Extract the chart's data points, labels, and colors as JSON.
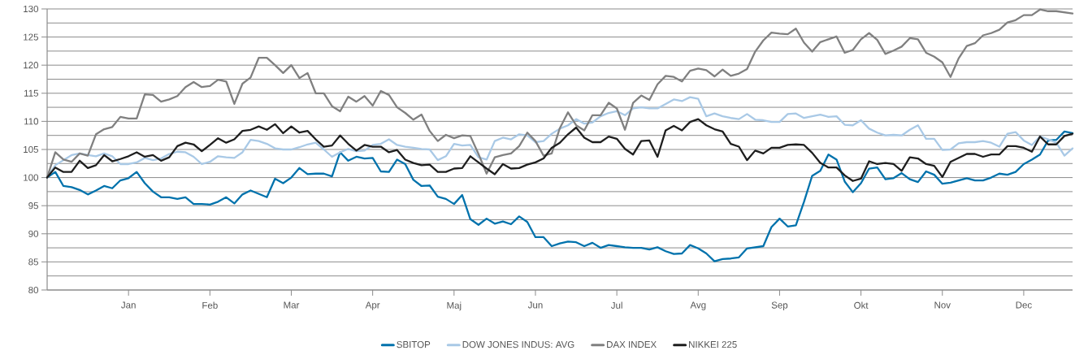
{
  "chart_data": {
    "type": "line",
    "categories": [
      null,
      null,
      null,
      null,
      null,
      null,
      null,
      null,
      null,
      null,
      "Jan",
      null,
      null,
      null,
      null,
      null,
      null,
      null,
      null,
      null,
      "Feb",
      null,
      null,
      null,
      null,
      null,
      null,
      null,
      null,
      null,
      "Mar",
      null,
      null,
      null,
      null,
      null,
      null,
      null,
      null,
      null,
      "Apr",
      null,
      null,
      null,
      null,
      null,
      null,
      null,
      null,
      null,
      "Maj",
      null,
      null,
      null,
      null,
      null,
      null,
      null,
      null,
      null,
      "Jun",
      null,
      null,
      null,
      null,
      null,
      null,
      null,
      null,
      null,
      "Jul",
      null,
      null,
      null,
      null,
      null,
      null,
      null,
      null,
      null,
      "Avg",
      null,
      null,
      null,
      null,
      null,
      null,
      null,
      null,
      null,
      "Sep",
      null,
      null,
      null,
      null,
      null,
      null,
      null,
      null,
      null,
      "Okt",
      null,
      null,
      null,
      null,
      null,
      null,
      null,
      null,
      null,
      "Nov",
      null,
      null,
      null,
      null,
      null,
      null,
      null,
      null,
      null,
      "Dec",
      null,
      null,
      null,
      null,
      null,
      null
    ],
    "ylim": [
      80,
      130
    ],
    "yticks": [
      80,
      {
        "value": 82.5,
        "label": null
      },
      85,
      {
        "value": 87.5,
        "label": null
      },
      90,
      {
        "value": 92.5,
        "label": null
      },
      95,
      {
        "value": 97.5,
        "label": null
      },
      100,
      {
        "value": 102.5,
        "label": null
      },
      105,
      {
        "value": 107.5,
        "label": null
      },
      110,
      {
        "value": 112.5,
        "label": null
      },
      115,
      {
        "value": 117.5,
        "label": null
      },
      120,
      {
        "value": 122.5,
        "label": null
      },
      125,
      {
        "value": 127.5,
        "label": null
      },
      130
    ],
    "grid": "y",
    "legend": "bottom",
    "series": [
      {
        "name": "SBITOP",
        "color": "#0072ac",
        "values": [
          100,
          101,
          98.5,
          98.3,
          97.8,
          97,
          97.7,
          98.5,
          98.1,
          99.5,
          99.9,
          101.0,
          99,
          97.5,
          96.5,
          96.5,
          96.2,
          96.5,
          95.3,
          95.3,
          95.2,
          95.7,
          96.5,
          95.4,
          97,
          97.7,
          97.1,
          96.5,
          99.8,
          99,
          100,
          101.7,
          100.6,
          100.7,
          100.7,
          100.2,
          104.5,
          103,
          103.7,
          103.4,
          103.5,
          101.1,
          101.0,
          103.2,
          102.4,
          99.6,
          98.5,
          98.6,
          96.6,
          96.2,
          95.3,
          96.9,
          92.6,
          91.6,
          92.7,
          91.8,
          92.2,
          91.7,
          93.1,
          92.1,
          89.4,
          89.4,
          87.8,
          88.3,
          88.6,
          88.5,
          87.8,
          88.4,
          87.5,
          88.0,
          87.8,
          87.6,
          87.5,
          87.5,
          87.2,
          87.6,
          86.9,
          86.4,
          86.5,
          88.0,
          87.4,
          86.5,
          85.1,
          85.5,
          85.6,
          85.8,
          87.4,
          87.6,
          87.8,
          91.2,
          92.7,
          91.3,
          91.5,
          95.7,
          100.3,
          101.2,
          104.1,
          103.2,
          99.3,
          97.4,
          99.0,
          101.6,
          101.8,
          99.7,
          99.9,
          100.8,
          99.7,
          99.2,
          101.1,
          100.5,
          98.9,
          99.1,
          99.5,
          99.9,
          99.5,
          99.5,
          100,
          100.7,
          100.5,
          101,
          102.4,
          103.2,
          104.1,
          106.6,
          106.7,
          108.2,
          107.9
        ]
      },
      {
        "name": "DOW JONES INDUS: AVG",
        "color": "#a9c9e6",
        "values": [
          100,
          102.2,
          103.1,
          104,
          104.3,
          104,
          103.8,
          104.3,
          103.8,
          102.4,
          102.4,
          102.7,
          103.5,
          103.1,
          103.4,
          104.2,
          104.6,
          104.5,
          103.7,
          102.4,
          102.8,
          103.8,
          103.6,
          103.5,
          104.5,
          106.7,
          106.5,
          106,
          105.2,
          105,
          105,
          105.4,
          105.9,
          106.2,
          105,
          103.7,
          104.5,
          105.1,
          104.7,
          104.8,
          105.8,
          106,
          106.8,
          105.8,
          105.5,
          105.3,
          105.1,
          105,
          103.1,
          103.8,
          106,
          105.7,
          105.8,
          103.6,
          103.2,
          106.5,
          107.1,
          106.8,
          107.7,
          107.5,
          106.3,
          106.5,
          107.8,
          108.7,
          109.3,
          110.4,
          109.6,
          109.8,
          110.9,
          111.5,
          111.8,
          111.1,
          112.3,
          112.5,
          112.3,
          112.3,
          113.1,
          113.9,
          113.6,
          114.3,
          114,
          110.9,
          111.4,
          110.9,
          110.6,
          110.4,
          111.3,
          110.3,
          110.2,
          109.9,
          109.9,
          111.3,
          111.4,
          110.6,
          110.9,
          111.2,
          110.8,
          110.9,
          109.4,
          109.3,
          110.2,
          108.7,
          108,
          107.5,
          107.6,
          107.5,
          108.5,
          109.3,
          106.9,
          106.9,
          104.9,
          105,
          106.1,
          106.3,
          106.3,
          106.5,
          106.2,
          105.5,
          107.8,
          108.1,
          106.6,
          105.8,
          107.3,
          106.8,
          106.2,
          103.9,
          105.2
        ]
      },
      {
        "name": "DAX INDEX",
        "color": "#808080",
        "values": [
          100,
          104.5,
          103.2,
          102.8,
          104.3,
          103.9,
          107.7,
          108.6,
          109,
          110.8,
          110.5,
          110.5,
          114.8,
          114.7,
          113.5,
          113.9,
          114.5,
          116.1,
          117,
          116.1,
          116.3,
          117.4,
          117.1,
          113.1,
          116.7,
          117.8,
          121.3,
          121.3,
          120,
          118.6,
          120,
          117.7,
          118.6,
          115,
          115,
          112.7,
          111.8,
          114.4,
          113.5,
          114.5,
          112.8,
          115.4,
          114.7,
          112.5,
          111.5,
          110.3,
          111.2,
          108.3,
          106.5,
          107.6,
          107.0,
          107.5,
          107.4,
          104.2,
          100.7,
          103.6,
          104,
          104.3,
          105.6,
          108,
          106.5,
          103.9,
          104.3,
          108.8,
          111.6,
          109.3,
          108.4,
          111.1,
          111.1,
          113.3,
          112.3,
          108.5,
          113.3,
          114.6,
          113.8,
          116.6,
          118.1,
          117.9,
          117.1,
          119,
          119.4,
          119.1,
          118,
          119.2,
          118.1,
          118.5,
          119.3,
          122.4,
          124.4,
          125.8,
          125.6,
          125.5,
          126.5,
          124,
          122.4,
          124.1,
          124.6,
          125.1,
          122.2,
          122.7,
          124.6,
          125.7,
          124.5,
          122,
          122.6,
          123.3,
          124.8,
          124.6,
          122.2,
          121.5,
          120.5,
          117.9,
          121.2,
          123.4,
          123.9,
          125.3,
          125.7,
          126.3,
          127.6,
          128,
          128.9,
          128.9,
          129.9,
          129.6,
          129.6,
          129.4,
          129.2
        ]
      },
      {
        "name": "NIKKEI 225",
        "color": "#1e1e1e",
        "values": [
          100,
          101.8,
          101,
          101,
          103,
          101.7,
          102.2,
          104,
          102.9,
          103.3,
          103.8,
          104.5,
          103.7,
          104,
          103,
          103.6,
          105.6,
          106.2,
          105.9,
          104.7,
          105.8,
          107,
          106.2,
          106.8,
          108.3,
          108.5,
          109.1,
          108.5,
          109.5,
          107.9,
          109.1,
          108,
          108.3,
          106.8,
          105.5,
          105.7,
          107.5,
          106,
          104.8,
          105.8,
          105.5,
          105.5,
          104.5,
          104.9,
          103.2,
          102.6,
          102.2,
          102.3,
          101,
          101,
          101.6,
          101.7,
          103.8,
          102.7,
          101.6,
          100.6,
          102.4,
          101.6,
          101.7,
          102.3,
          102.7,
          103.4,
          105.3,
          106.2,
          107.7,
          108.9,
          107.1,
          106.3,
          106.3,
          107.3,
          106.9,
          105.1,
          104.1,
          106.5,
          106.6,
          103.7,
          108.4,
          109.2,
          108.4,
          109.9,
          110.4,
          109.3,
          108.6,
          108.2,
          106,
          105.5,
          103.1,
          104.8,
          104.3,
          105.3,
          105.3,
          105.8,
          105.9,
          105.8,
          104.4,
          102.6,
          101.8,
          101.8,
          100.4,
          99.4,
          99.8,
          102.9,
          102.4,
          102.6,
          102.4,
          101.2,
          103.6,
          103.4,
          102.4,
          102.1,
          100.1,
          102.8,
          103.5,
          104.2,
          104.2,
          103.7,
          104.1,
          104.1,
          105.6,
          105.6,
          105.3,
          104.6,
          107.3,
          105.9,
          105.9,
          107.4,
          107.8
        ]
      }
    ]
  }
}
